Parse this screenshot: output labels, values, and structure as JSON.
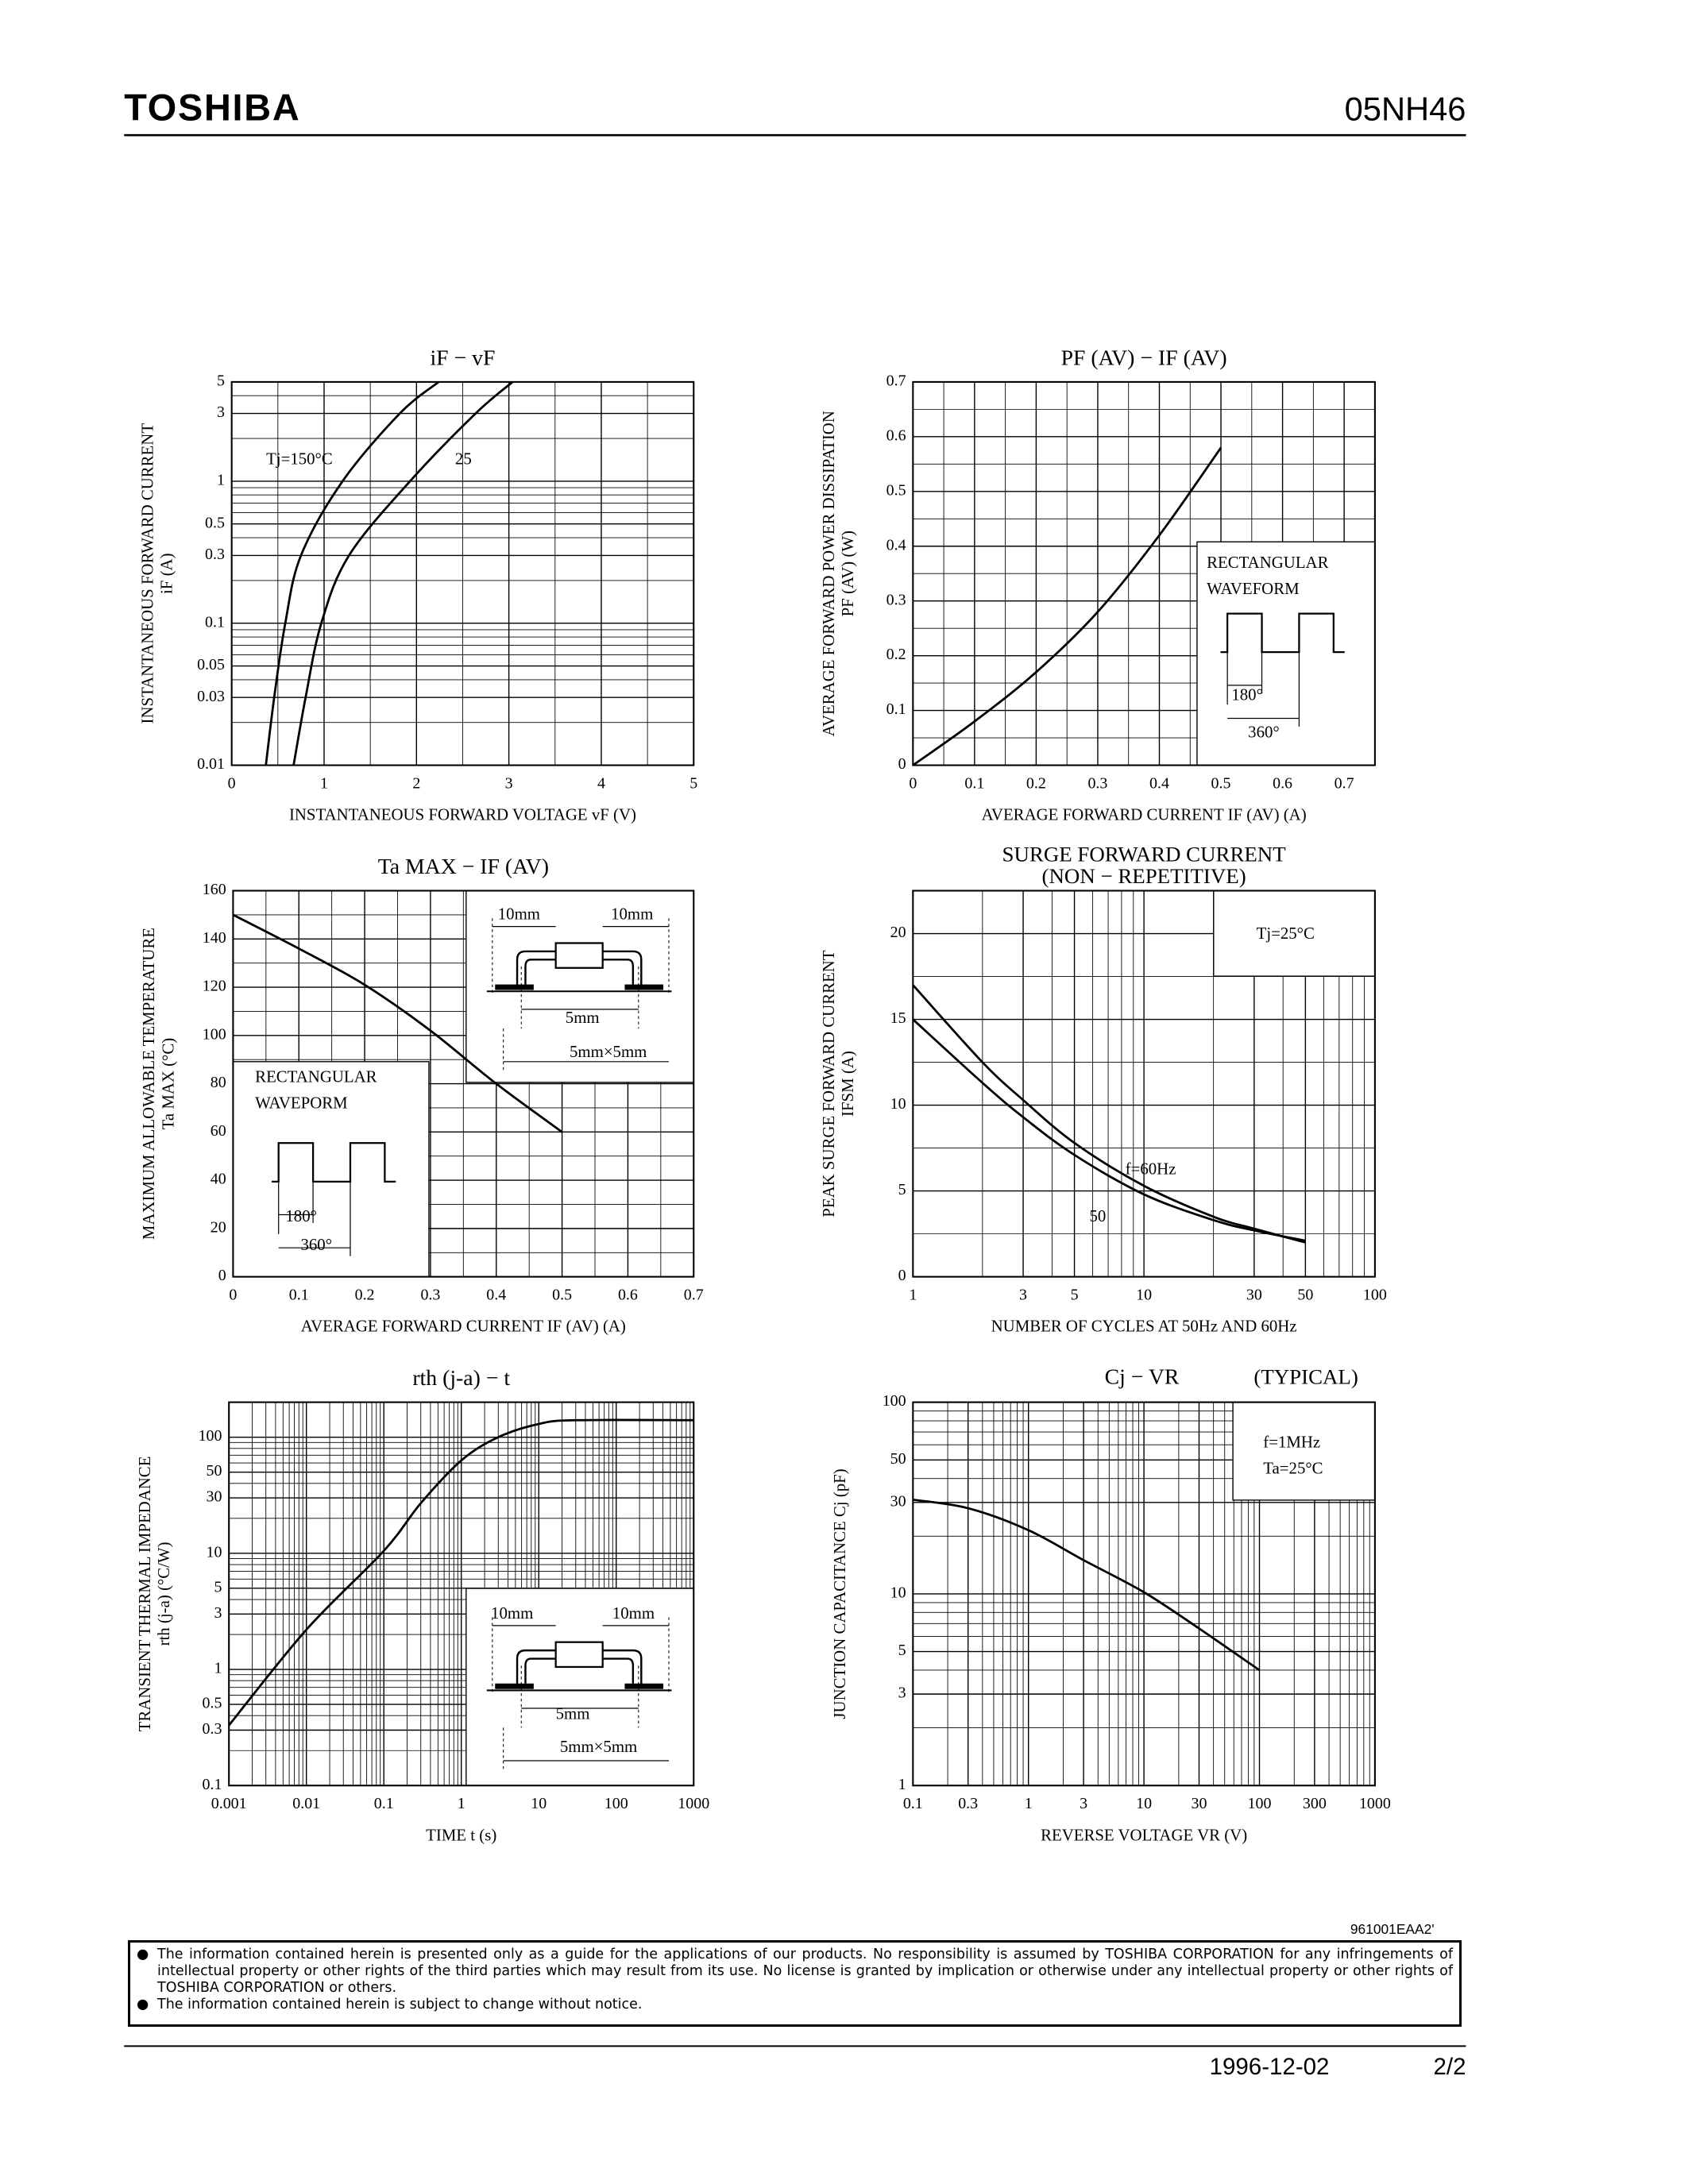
{
  "header": {
    "logo": "TOSHIBA",
    "part": "05NH46"
  },
  "chart_data": [
    {
      "type": "line",
      "title": "iF − vF",
      "xlabel": "INSTANTANEOUS FORWARD VOLTAGE  vF  (V)",
      "ylabel": "INSTANTANEOUS FORWARD CURRENT",
      "ylabel_unit": "iF  (A)",
      "xlim": [
        0,
        5
      ],
      "ylim": [
        0.01,
        5
      ],
      "ylog": true,
      "xticks": [
        0,
        1,
        2,
        3,
        4,
        5
      ],
      "yticks": [
        0.01,
        0.03,
        0.05,
        0.1,
        0.3,
        0.5,
        1,
        3,
        5
      ],
      "xgrid": [
        0.5,
        1.5,
        2.5,
        3.5,
        4.5
      ],
      "ygrid": [
        0.02,
        0.04,
        0.06,
        0.07,
        0.08,
        0.09,
        0.2,
        0.4,
        0.6,
        0.7,
        0.8,
        0.9,
        2,
        4
      ],
      "series": [
        {
          "name": "Tj=150°C",
          "color": "#000",
          "x": [
            0.37,
            0.46,
            0.58,
            0.75,
            1.2,
            1.82,
            2.24
          ],
          "values": [
            0.01,
            0.03,
            0.1,
            0.3,
            1,
            3,
            5
          ]
        },
        {
          "name": "25",
          "color": "#000",
          "x": [
            0.67,
            0.8,
            0.97,
            1.27,
            1.93,
            2.64,
            3.04
          ],
          "values": [
            0.01,
            0.03,
            0.1,
            0.3,
            1,
            3,
            5
          ]
        }
      ]
    },
    {
      "type": "line",
      "title": "PF (AV) − IF (AV)",
      "xlabel": "AVERAGE FORWARD CURRENT  IF (AV)  (A)",
      "ylabel": "AVERAGE FORWARD POWER DISSIPATION",
      "ylabel_unit": "PF (AV)  (W)",
      "xlim": [
        0,
        0.75
      ],
      "ylim": [
        0,
        0.7
      ],
      "xticks": [
        0,
        0.1,
        0.2,
        0.3,
        0.4,
        0.5,
        0.6,
        0.7
      ],
      "yticks": [
        0,
        0.1,
        0.2,
        0.3,
        0.4,
        0.5,
        0.6,
        0.7
      ],
      "xgrid": [
        0.05,
        0.15,
        0.25,
        0.35,
        0.45,
        0.55,
        0.65
      ],
      "ygrid": [
        0.05,
        0.15,
        0.25,
        0.35,
        0.45,
        0.55,
        0.65
      ],
      "inset_text": [
        "RECTANGULAR",
        "WAVEFORM",
        "180°",
        "360°"
      ],
      "series": [
        {
          "color": "#000",
          "x": [
            0,
            0.1,
            0.2,
            0.3,
            0.4,
            0.5
          ],
          "values": [
            0,
            0.08,
            0.17,
            0.28,
            0.42,
            0.58
          ]
        }
      ]
    },
    {
      "type": "line",
      "title": "Ta MAX − IF (AV)",
      "xlabel": "AVERAGE FORWARD CURRENT  IF (AV)  (A)",
      "ylabel": "MAXIMUM ALLOWABLE TEMPERATURE",
      "ylabel_unit": "Ta  MAX  (°C)",
      "xlim": [
        0,
        0.7
      ],
      "ylim": [
        0,
        160
      ],
      "xticks": [
        0,
        0.1,
        0.2,
        0.3,
        0.4,
        0.5,
        0.6,
        0.7
      ],
      "yticks": [
        0,
        20,
        40,
        60,
        80,
        100,
        120,
        140,
        160
      ],
      "xgrid": [
        0.05,
        0.15,
        0.25,
        0.35,
        0.45,
        0.55,
        0.65
      ],
      "ygrid": [
        10,
        30,
        50,
        70,
        90,
        110,
        130,
        150
      ],
      "inset_text": [
        "10mm",
        "10mm",
        "5mm",
        "5mm×5mm",
        "RECTANGULAR",
        "WAVEPORM",
        "180°",
        "360°"
      ],
      "series": [
        {
          "color": "#000",
          "x": [
            0,
            0.1,
            0.2,
            0.3,
            0.4,
            0.5
          ],
          "values": [
            150,
            136,
            121,
            102,
            80,
            60
          ]
        }
      ]
    },
    {
      "type": "line",
      "title": "SURGE FORWARD CURRENT",
      "subtitle": "(NON − REPETITIVE)",
      "xlabel": "NUMBER OF CYCLES AT 50Hz AND 60Hz",
      "ylabel": "PEAK SURGE FORWARD CURRENT",
      "ylabel_unit": "IFSM  (A)",
      "xlim": [
        1,
        100
      ],
      "xlog": true,
      "ylim": [
        0,
        22.5
      ],
      "xticks": [
        1,
        3,
        5,
        10,
        30,
        50,
        100
      ],
      "yticks": [
        0,
        5,
        10,
        15,
        20
      ],
      "xgrid": [
        2,
        4,
        6,
        7,
        8,
        9,
        20,
        40,
        60,
        70,
        80,
        90
      ],
      "ygrid": [
        2.5,
        7.5,
        12.5,
        17.5
      ],
      "inset_text": [
        "Tj=25°C"
      ],
      "series": [
        {
          "name": "f=60Hz",
          "color": "#000",
          "x": [
            1,
            2,
            3,
            5,
            10,
            20,
            30,
            50
          ],
          "values": [
            17,
            12.5,
            10.3,
            7.8,
            5.3,
            3.5,
            2.8,
            2
          ]
        },
        {
          "name": "50",
          "color": "#000",
          "x": [
            1,
            2,
            3,
            5,
            10,
            20,
            30,
            50
          ],
          "values": [
            15,
            11.3,
            9.3,
            7.1,
            4.8,
            3.3,
            2.7,
            2.1
          ]
        }
      ]
    },
    {
      "type": "line",
      "title": "rth (j-a) − t",
      "xlabel": "TIME   t   (s)",
      "ylabel": "TRANSIENT THERMAL IMPEDANCE",
      "ylabel_unit": "rth (j-a)  (°C/W)",
      "xlim": [
        0.001,
        1000
      ],
      "xlog": true,
      "ylim": [
        0.1,
        200
      ],
      "ylog": true,
      "xticks": [
        0.001,
        0.01,
        0.1,
        1,
        10,
        100,
        1000
      ],
      "yticks": [
        0.1,
        0.3,
        0.5,
        1,
        3,
        5,
        10,
        30,
        50,
        100
      ],
      "xgrid": [
        0.002,
        0.003,
        0.004,
        0.005,
        0.006,
        0.007,
        0.008,
        0.009,
        0.02,
        0.03,
        0.04,
        0.05,
        0.06,
        0.07,
        0.08,
        0.09,
        0.2,
        0.3,
        0.4,
        0.5,
        0.6,
        0.7,
        0.8,
        0.9,
        2,
        3,
        4,
        5,
        6,
        7,
        8,
        9,
        20,
        30,
        40,
        50,
        60,
        70,
        80,
        90,
        200,
        300,
        400,
        500,
        600,
        700,
        800,
        900
      ],
      "ygrid": [
        0.2,
        0.4,
        0.6,
        0.7,
        0.8,
        0.9,
        2,
        4,
        6,
        7,
        8,
        9,
        20,
        40,
        60,
        70,
        80,
        90
      ],
      "inset_text": [
        "10mm",
        "10mm",
        "5mm",
        "5mm×5mm"
      ],
      "series": [
        {
          "color": "#000",
          "x": [
            0.001,
            0.01,
            0.1,
            0.3,
            1,
            3,
            10,
            30,
            1000
          ],
          "values": [
            0.33,
            2.2,
            10.5,
            27,
            63,
            100,
            130,
            140,
            140
          ]
        }
      ]
    },
    {
      "type": "line",
      "title": "Cj − VR",
      "title_note": "(TYPICAL)",
      "xlabel": "REVERSE VOLTAGE   VR   (V)",
      "ylabel": "JUNCTION CAPACITANCE   Cj   (pF)",
      "xlim": [
        0.1,
        1000
      ],
      "xlog": true,
      "ylim": [
        1,
        100
      ],
      "ylog": true,
      "xticks": [
        0.1,
        0.3,
        1,
        3,
        10,
        30,
        100,
        300,
        1000
      ],
      "yticks": [
        1,
        3,
        5,
        10,
        30,
        50,
        100
      ],
      "xgrid": [
        0.2,
        0.4,
        0.5,
        0.6,
        0.7,
        0.8,
        0.9,
        2,
        4,
        5,
        6,
        7,
        8,
        9,
        20,
        40,
        50,
        60,
        70,
        80,
        90,
        200,
        400,
        500,
        600,
        700,
        800,
        900
      ],
      "ygrid": [
        2,
        4,
        6,
        7,
        8,
        9,
        20,
        40,
        60,
        70,
        80,
        90
      ],
      "inset_text": [
        "f=1MHz",
        "Ta=25°C"
      ],
      "series": [
        {
          "color": "#000",
          "x": [
            0.1,
            0.3,
            1,
            3,
            10,
            30,
            100
          ],
          "values": [
            31,
            28,
            21.5,
            15,
            10.2,
            6.6,
            4
          ]
        }
      ]
    }
  ],
  "footer": {
    "code": "961001EAA2'",
    "notes": [
      "The information contained herein is presented only as a guide for the applications of our products. No responsibility is assumed by TOSHIBA CORPORATION for any infringements of intellectual property or other rights of the third parties which may result from its use. No license is granted by implication or otherwise under any intellectual property or other rights of TOSHIBA CORPORATION or others.",
      "The information contained herein is subject to change without notice."
    ],
    "date": "1996-12-02",
    "page": "2/2"
  }
}
